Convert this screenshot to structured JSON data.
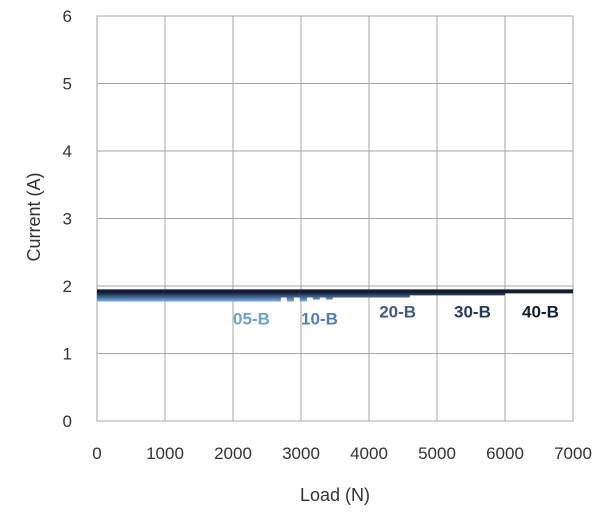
{
  "chart_data": {
    "type": "line",
    "title": "",
    "xlabel": "Load (N)",
    "ylabel": "Current (A)",
    "xlim": [
      0,
      7000
    ],
    "ylim": [
      0,
      6
    ],
    "x_ticks": [
      "0",
      "1000",
      "2000",
      "3000",
      "4000",
      "5000",
      "6000",
      "7000"
    ],
    "y_ticks": [
      "0",
      "1",
      "2",
      "3",
      "4",
      "5",
      "6"
    ],
    "grid": true,
    "legend": "none",
    "series": [
      {
        "name": "05-B",
        "color": "#6fa1cf",
        "solid": {
          "x": [
            0,
            2600
          ],
          "y": [
            1.8,
            1.8
          ]
        },
        "dotted": {
          "x": [
            2600,
            3100
          ],
          "y": [
            1.8,
            1.8
          ]
        }
      },
      {
        "name": "10-B",
        "color": "#4f7fb5",
        "solid": {
          "x": [
            0,
            2600
          ],
          "y": [
            1.83,
            1.83
          ]
        },
        "dotted": {
          "x": [
            2600,
            3550
          ],
          "y": [
            1.83,
            1.83
          ]
        }
      },
      {
        "name": "20-B",
        "color": "#3f5c7e",
        "solid": {
          "x": [
            0,
            4600
          ],
          "y": [
            1.86,
            1.86
          ]
        }
      },
      {
        "name": "30-B",
        "color": "#263b5c",
        "solid": {
          "x": [
            0,
            6000
          ],
          "y": [
            1.89,
            1.89
          ]
        }
      },
      {
        "name": "40-B",
        "color": "#141e33",
        "solid": {
          "x": [
            0,
            7000
          ],
          "y": [
            1.92,
            1.92
          ]
        }
      }
    ]
  }
}
